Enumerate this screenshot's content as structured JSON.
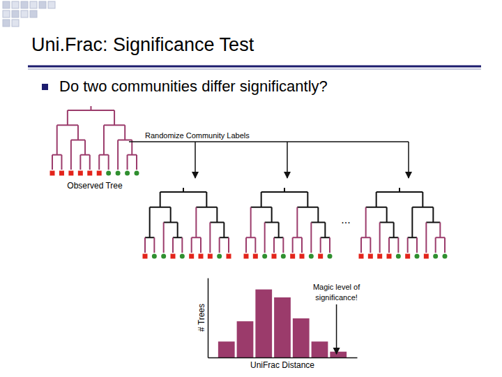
{
  "slide": {
    "title": "Uni.Frac: Significance Test",
    "bullets": [
      "Do two communities differ significantly?"
    ]
  },
  "diagram": {
    "observed_label": "Observed Tree",
    "randomize_label": "Randomize Community Labels",
    "ellipsis": "..."
  },
  "chart_data": {
    "type": "histogram",
    "bins": [
      0,
      1,
      2,
      3,
      4,
      5,
      6,
      7
    ],
    "values": [
      22,
      50,
      94,
      83,
      54,
      22,
      8
    ],
    "color": "#9b3b6b",
    "xlim": [
      -0.5,
      7.5
    ],
    "ylim": [
      0,
      110
    ],
    "tick_labels": false,
    "x_label": "UniFrac Distance",
    "y_label": "# Trees",
    "annotations": [
      {
        "text": "Magic level of significance!",
        "x": 6.4
      }
    ]
  }
}
